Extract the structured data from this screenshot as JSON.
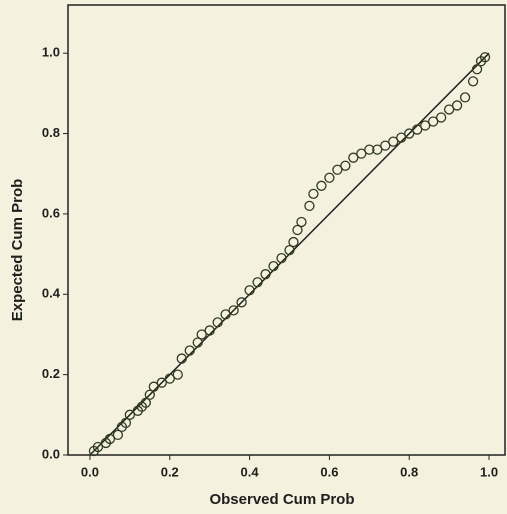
{
  "chart_data": {
    "type": "scatter",
    "xlabel": "Observed Cum Prob",
    "ylabel": "Expected Cum Prob",
    "xlim": [
      -0.055,
      1.04
    ],
    "ylim": [
      0,
      1.12
    ],
    "xticks": [
      {
        "value": 0,
        "label": "0.0"
      },
      0.2,
      0.4,
      0.6,
      0.8,
      {
        "value": 1,
        "label": "1.0"
      }
    ],
    "yticks": [
      {
        "value": 0,
        "label": "0.0"
      },
      0.2,
      0.4,
      0.6,
      0.8,
      {
        "value": 1,
        "label": "1.0"
      }
    ],
    "color": "#2f3a22",
    "reference_line": {
      "x": [
        0,
        1
      ],
      "y": [
        0,
        1
      ]
    },
    "x": [
      0.01,
      0.02,
      0.04,
      0.05,
      0.07,
      0.08,
      0.09,
      0.1,
      0.12,
      0.13,
      0.14,
      0.15,
      0.16,
      0.18,
      0.2,
      0.22,
      0.23,
      0.25,
      0.27,
      0.28,
      0.3,
      0.32,
      0.34,
      0.36,
      0.38,
      0.4,
      0.42,
      0.44,
      0.46,
      0.48,
      0.5,
      0.51,
      0.52,
      0.53,
      0.55,
      0.56,
      0.58,
      0.6,
      0.62,
      0.64,
      0.66,
      0.68,
      0.7,
      0.72,
      0.74,
      0.76,
      0.78,
      0.8,
      0.82,
      0.84,
      0.86,
      0.88,
      0.9,
      0.92,
      0.94,
      0.96,
      0.97,
      0.98,
      0.99
    ],
    "values": [
      0.01,
      0.02,
      0.03,
      0.04,
      0.05,
      0.07,
      0.08,
      0.1,
      0.11,
      0.12,
      0.13,
      0.15,
      0.17,
      0.18,
      0.19,
      0.2,
      0.24,
      0.26,
      0.28,
      0.3,
      0.31,
      0.33,
      0.35,
      0.36,
      0.38,
      0.41,
      0.43,
      0.45,
      0.47,
      0.49,
      0.51,
      0.53,
      0.56,
      0.58,
      0.62,
      0.65,
      0.67,
      0.69,
      0.71,
      0.72,
      0.74,
      0.75,
      0.76,
      0.76,
      0.77,
      0.78,
      0.79,
      0.8,
      0.81,
      0.82,
      0.83,
      0.84,
      0.86,
      0.87,
      0.89,
      0.93,
      0.96,
      0.98,
      0.99
    ]
  }
}
